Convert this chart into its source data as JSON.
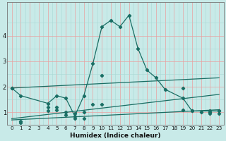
{
  "xlabel": "Humidex (Indice chaleur)",
  "bg_color": "#c8eae8",
  "line_color": "#1a6e64",
  "xlim": [
    -0.5,
    23.5
  ],
  "ylim": [
    0.55,
    5.3
  ],
  "x_ticks": [
    0,
    1,
    2,
    3,
    4,
    5,
    6,
    7,
    8,
    9,
    10,
    11,
    12,
    13,
    14,
    15,
    16,
    17,
    18,
    19,
    20,
    21,
    22,
    23
  ],
  "y_ticks": [
    1,
    2,
    3,
    4
  ],
  "series": [
    {
      "x": [
        0,
        1,
        4,
        5,
        6,
        7,
        8,
        9,
        10,
        11,
        12,
        13,
        14,
        15,
        16,
        17,
        19,
        20,
        22,
        23
      ],
      "y": [
        1.95,
        1.65,
        1.35,
        1.65,
        1.55,
        0.85,
        1.65,
        2.9,
        4.35,
        4.6,
        4.35,
        4.8,
        3.5,
        2.65,
        2.35,
        1.9,
        1.55,
        1.05,
        1.05,
        1.05
      ]
    },
    {
      "x": [
        0,
        23
      ],
      "y": [
        1.95,
        2.35
      ]
    },
    {
      "x": [
        0,
        23
      ],
      "y": [
        0.75,
        1.7
      ]
    },
    {
      "x": [
        0,
        23
      ],
      "y": [
        0.7,
        1.1
      ]
    }
  ],
  "series_markers": [
    {
      "x": [
        0,
        1,
        4,
        5,
        6,
        7,
        8,
        9,
        10,
        11,
        12,
        13,
        14,
        15,
        16,
        17,
        19,
        20,
        22,
        23
      ],
      "y": [
        1.95,
        1.65,
        1.35,
        1.65,
        1.55,
        0.85,
        1.65,
        2.9,
        4.35,
        4.6,
        4.35,
        4.8,
        3.5,
        2.65,
        2.35,
        1.9,
        1.55,
        1.05,
        1.05,
        1.05
      ]
    },
    {
      "x": [
        0,
        10,
        19
      ],
      "y": [
        1.95,
        2.45,
        1.95
      ]
    },
    {
      "x": [
        1,
        4,
        5,
        6,
        7,
        8,
        9,
        10,
        19,
        20,
        21,
        22,
        23
      ],
      "y": [
        0.65,
        1.2,
        1.2,
        1.0,
        0.95,
        1.0,
        1.3,
        1.3,
        1.1,
        1.05,
        1.0,
        1.0,
        1.05
      ]
    },
    {
      "x": [
        1,
        4,
        5,
        6,
        7,
        8,
        22,
        23
      ],
      "y": [
        0.6,
        1.05,
        1.1,
        0.9,
        0.75,
        0.75,
        0.95,
        0.95
      ]
    }
  ]
}
